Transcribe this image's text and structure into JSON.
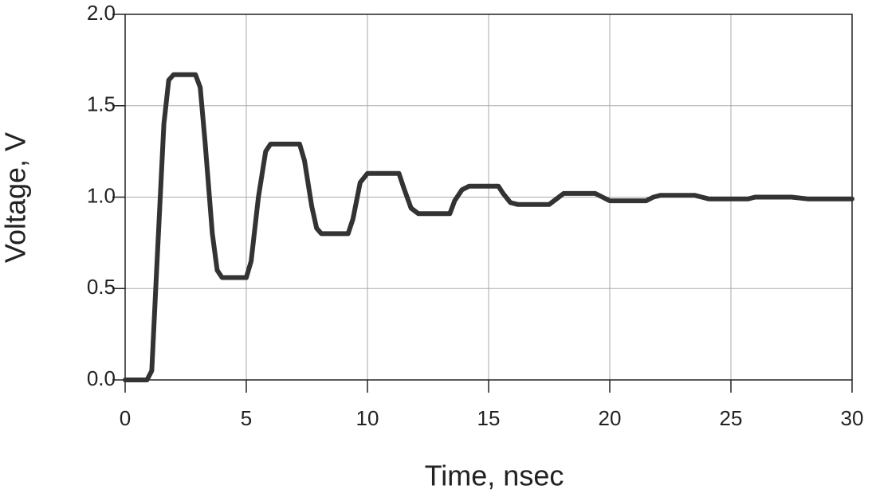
{
  "chart_data": {
    "type": "line",
    "x_label": "Time, nsec",
    "y_label": "Voltage, V",
    "x": [
      0,
      0.9,
      1.1,
      1.3,
      1.6,
      1.8,
      2.0,
      2.9,
      3.1,
      3.3,
      3.6,
      3.8,
      4.0,
      5.0,
      5.2,
      5.5,
      5.8,
      6.0,
      7.2,
      7.4,
      7.7,
      7.9,
      8.1,
      9.2,
      9.4,
      9.7,
      10.0,
      11.3,
      11.5,
      11.8,
      12.1,
      13.4,
      13.6,
      13.9,
      14.2,
      15.4,
      15.6,
      15.9,
      16.2,
      17.5,
      17.8,
      18.1,
      19.4,
      19.7,
      20.0,
      21.5,
      21.8,
      22.1,
      23.5,
      23.8,
      24.1,
      25.7,
      26.0,
      27.5,
      28.2,
      30
    ],
    "values": [
      0,
      0,
      0.05,
      0.6,
      1.4,
      1.64,
      1.67,
      1.67,
      1.6,
      1.3,
      0.8,
      0.6,
      0.56,
      0.56,
      0.65,
      1.0,
      1.25,
      1.29,
      1.29,
      1.2,
      0.95,
      0.83,
      0.8,
      0.8,
      0.88,
      1.08,
      1.13,
      1.13,
      1.05,
      0.94,
      0.91,
      0.91,
      0.98,
      1.04,
      1.06,
      1.06,
      1.02,
      0.97,
      0.96,
      0.96,
      0.99,
      1.02,
      1.02,
      1.0,
      0.98,
      0.98,
      1.0,
      1.01,
      1.01,
      1.0,
      0.99,
      0.99,
      1.0,
      1.0,
      0.99,
      0.99
    ],
    "color": "#333333",
    "xlim": [
      0,
      30
    ],
    "xticks": [
      0,
      5,
      10,
      15,
      20,
      25,
      30
    ],
    "ylim": [
      0,
      2
    ],
    "yticks": [
      {
        "value": 0,
        "label": "0.0"
      },
      {
        "value": 0.5,
        "label": "0.5"
      },
      {
        "value": 1,
        "label": "1.0"
      },
      {
        "value": 1.5,
        "label": "1.5"
      },
      {
        "value": 2,
        "label": "2.0"
      }
    ],
    "grid": true
  }
}
